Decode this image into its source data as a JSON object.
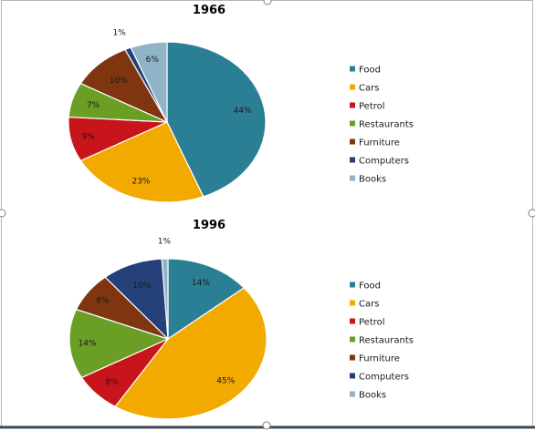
{
  "chart_data": [
    {
      "type": "pie",
      "title": "1966",
      "legend_position": "right",
      "slices": [
        {
          "name": "Food",
          "value": 44,
          "label": "44%",
          "color": "#2a7f94"
        },
        {
          "name": "Cars",
          "value": 23,
          "label": "23%",
          "color": "#f2a900"
        },
        {
          "name": "Petrol",
          "value": 9,
          "label": "9%",
          "color": "#c8141b"
        },
        {
          "name": "Restaurants",
          "value": 7,
          "label": "7%",
          "color": "#6a9e24"
        },
        {
          "name": "Furniture",
          "value": 10,
          "label": "10%",
          "color": "#7e3510"
        },
        {
          "name": "Computers",
          "value": 1,
          "label": "1%",
          "color": "#253f78"
        },
        {
          "name": "Books",
          "value": 6,
          "label": "6%",
          "color": "#8fb3c7"
        }
      ]
    },
    {
      "type": "pie",
      "title": "1996",
      "legend_position": "right",
      "slices": [
        {
          "name": "Food",
          "value": 14,
          "label": "14%",
          "color": "#2a7f94"
        },
        {
          "name": "Cars",
          "value": 45,
          "label": "45%",
          "color": "#f2a900"
        },
        {
          "name": "Petrol",
          "value": 8,
          "label": "8%",
          "color": "#c8141b"
        },
        {
          "name": "Restaurants",
          "value": 14,
          "label": "14%",
          "color": "#6a9e24"
        },
        {
          "name": "Furniture",
          "value": 8,
          "label": "8%",
          "color": "#7e3510"
        },
        {
          "name": "Computers",
          "value": 10,
          "label": "10%",
          "color": "#253f78"
        },
        {
          "name": "Books",
          "value": 1,
          "label": "1%",
          "color": "#8fb3c7"
        }
      ]
    }
  ],
  "colors": {
    "frame_border": "#b5b5b5",
    "handle_border": "#7f7f7f",
    "bottom_bar": "#3c4a5a"
  }
}
